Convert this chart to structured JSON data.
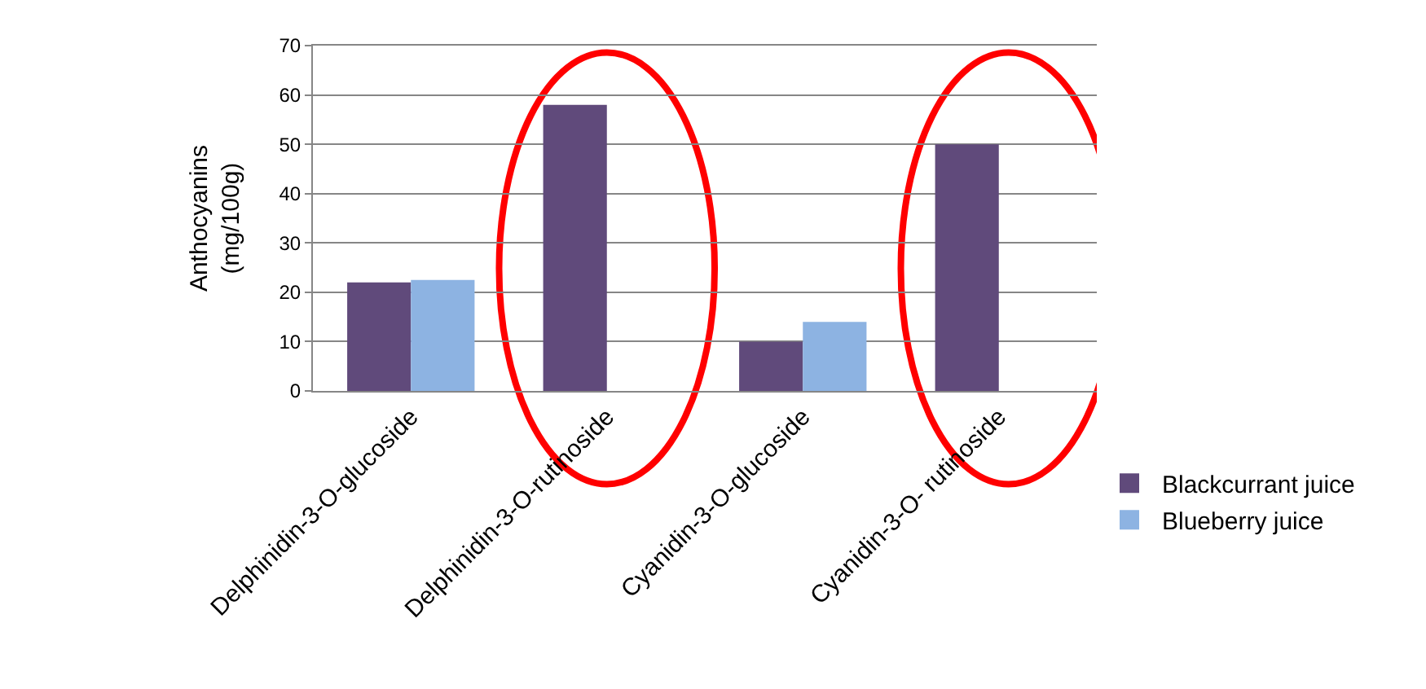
{
  "chart_data": {
    "type": "bar",
    "ylabel": "Anthocyanins\n(mg/100g)",
    "categories": [
      "Delphinidin-3-O-glucoside",
      "Delphinidin-3-O-rutinoside",
      "Cyanidin-3-O-glucoside",
      "Cyanidin-3-O- rutinoside"
    ],
    "series": [
      {
        "name": "Blackcurrant juice",
        "color": "#604a7b",
        "values": [
          22,
          58,
          10,
          50
        ]
      },
      {
        "name": "Blueberry juice",
        "color": "#8db3e2",
        "values": [
          22.5,
          null,
          14,
          null
        ]
      }
    ],
    "ylim": [
      0,
      70
    ],
    "yticks": [
      0,
      10,
      20,
      30,
      40,
      50,
      60,
      70
    ],
    "grid": "y",
    "legend": "bottom right"
  }
}
